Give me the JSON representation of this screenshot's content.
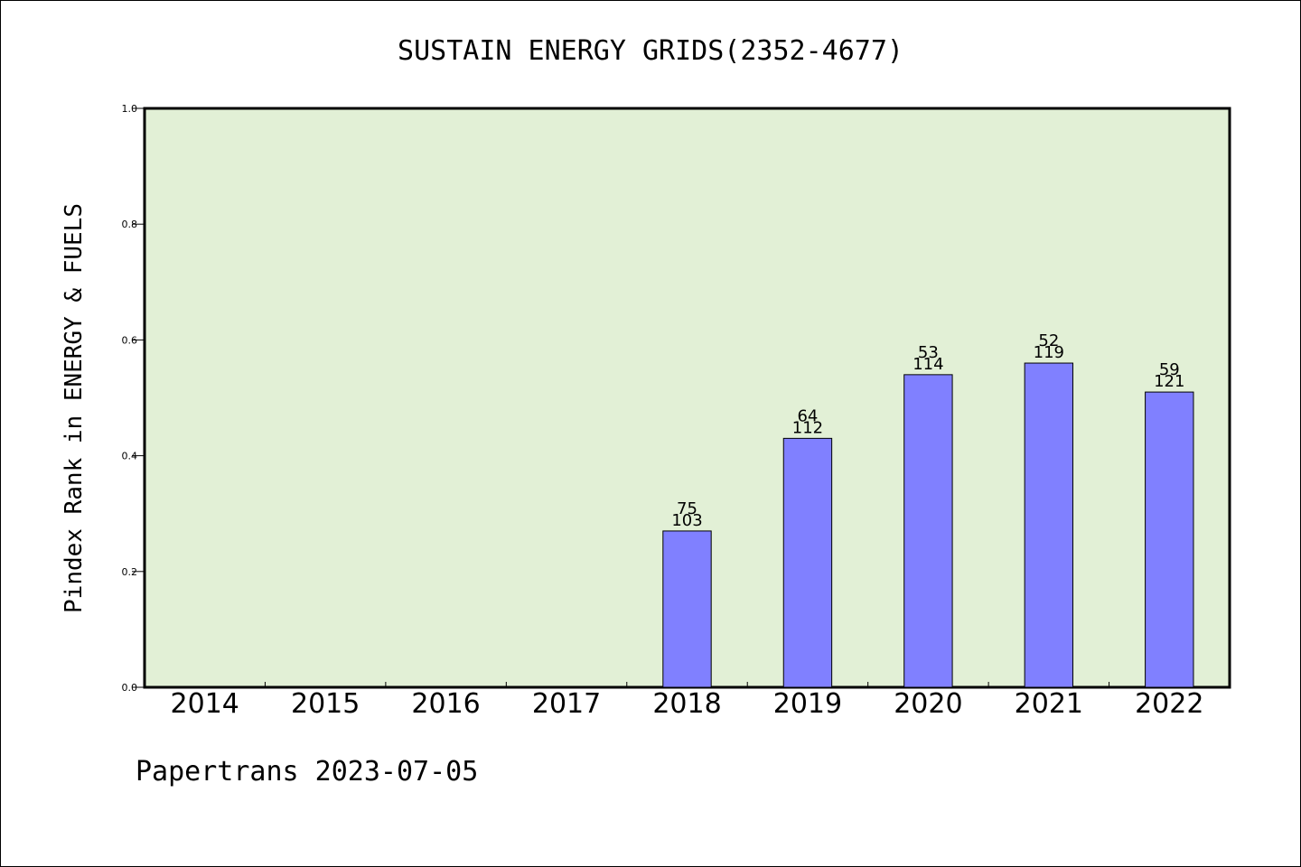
{
  "chart_data": {
    "type": "bar",
    "title": "SUSTAIN ENERGY GRIDS(2352-4677)",
    "ylabel": "Pindex Rank in ENERGY & FUELS",
    "xlabel": "",
    "footer": "Papertrans 2023-07-05",
    "ylim": [
      0,
      1.0
    ],
    "yticks": [
      "0.0",
      "0.2",
      "0.4",
      "0.6",
      "0.8",
      "1.0"
    ],
    "ytick_values": [
      0,
      0.2,
      0.4,
      0.6,
      0.8,
      1.0
    ],
    "grid": false,
    "legend": "none",
    "categories": [
      "2014",
      "2015",
      "2016",
      "2017",
      "2018",
      "2019",
      "2020",
      "2021",
      "2022"
    ],
    "values": [
      null,
      null,
      null,
      null,
      0.27,
      0.43,
      0.54,
      0.56,
      0.51
    ],
    "label_top": [
      "",
      "",
      "",
      "",
      "75",
      "64",
      "53",
      "52",
      "59"
    ],
    "label_bottom": [
      "",
      "",
      "",
      "",
      "103",
      "112",
      "114",
      "119",
      "121"
    ],
    "colors": {
      "plot_background": "#e2f0d6",
      "bar_fill": "#8080ff",
      "bar_stroke": "#000000",
      "axis": "#000000"
    }
  }
}
